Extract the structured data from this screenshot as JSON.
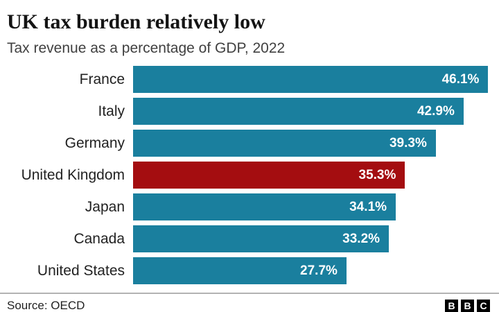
{
  "header": {
    "title": "UK tax burden relatively low",
    "subtitle": "Tax revenue as a percentage of GDP, 2022"
  },
  "chart_data": {
    "type": "bar",
    "orientation": "horizontal",
    "title": "UK tax burden relatively low",
    "subtitle": "Tax revenue as a percentage of GDP, 2022",
    "xlabel": "",
    "ylabel": "",
    "categories": [
      "France",
      "Italy",
      "Germany",
      "United Kingdom",
      "Japan",
      "Canada",
      "United States"
    ],
    "values": [
      46.1,
      42.9,
      39.3,
      35.3,
      34.1,
      33.2,
      27.7
    ],
    "value_labels": [
      "46.1%",
      "42.9%",
      "39.3%",
      "35.3%",
      "34.1%",
      "33.2%",
      "27.7%"
    ],
    "highlight_index": 3,
    "highlight_category": "United Kingdom",
    "bar_color": "#1A7F9E",
    "highlight_color": "#A40D10",
    "value_label_color": "#ffffff",
    "xlim": [
      0,
      47.5
    ],
    "grid": false,
    "legend": false
  },
  "footer": {
    "source": "Source: OECD",
    "logo_letters": [
      "B",
      "B",
      "C"
    ]
  }
}
